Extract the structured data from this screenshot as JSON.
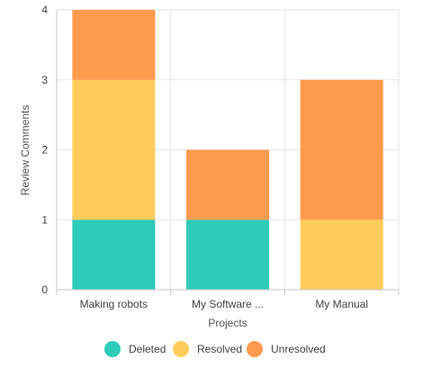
{
  "chart_data": {
    "type": "bar",
    "stacked": true,
    "categories": [
      "Making robots",
      "My Software ...",
      "My Manual"
    ],
    "series": [
      {
        "name": "Deleted",
        "values": [
          1,
          1,
          0
        ],
        "color": "#2ECBB8"
      },
      {
        "name": "Resolved",
        "values": [
          2,
          0,
          1
        ],
        "color": "#FFCC5C"
      },
      {
        "name": "Unresolved",
        "values": [
          1,
          1,
          2
        ],
        "color": "#FF9A4E"
      }
    ],
    "xlabel": "Projects",
    "ylabel": "Review Comments",
    "ylim": [
      0,
      4
    ],
    "yticks": [
      0,
      1,
      2,
      3,
      4
    ],
    "grid": true,
    "legend_position": "bottom"
  }
}
